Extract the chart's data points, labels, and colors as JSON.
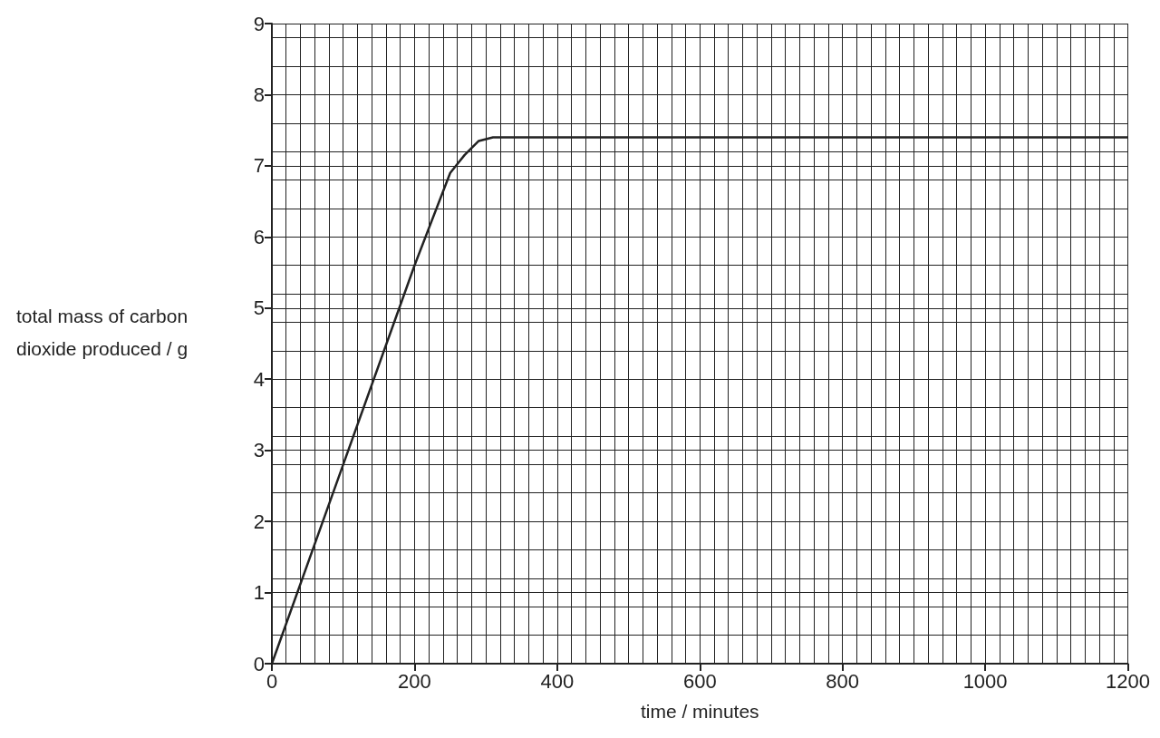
{
  "chart_data": {
    "type": "line",
    "xlabel": "time / minutes",
    "ylabel": "total mass of carbon dioxide produced / g",
    "x": [
      0,
      100,
      200,
      250,
      270,
      290,
      310,
      400,
      600,
      800,
      1000,
      1200
    ],
    "series": [
      {
        "color": "#222222",
        "values": [
          0,
          2.8,
          5.6,
          6.9,
          7.15,
          7.35,
          7.4,
          7.4,
          7.4,
          7.4,
          7.4,
          7.4
        ]
      }
    ],
    "xlim": [
      0,
      1200
    ],
    "xticks": [
      0,
      200,
      400,
      600,
      800,
      1000,
      1200
    ],
    "ylim": [
      0,
      9
    ],
    "yticks": [
      0,
      1,
      2,
      3,
      4,
      5,
      6,
      7,
      8,
      9
    ],
    "grid": true,
    "marker": "none",
    "line_style": "solid"
  }
}
